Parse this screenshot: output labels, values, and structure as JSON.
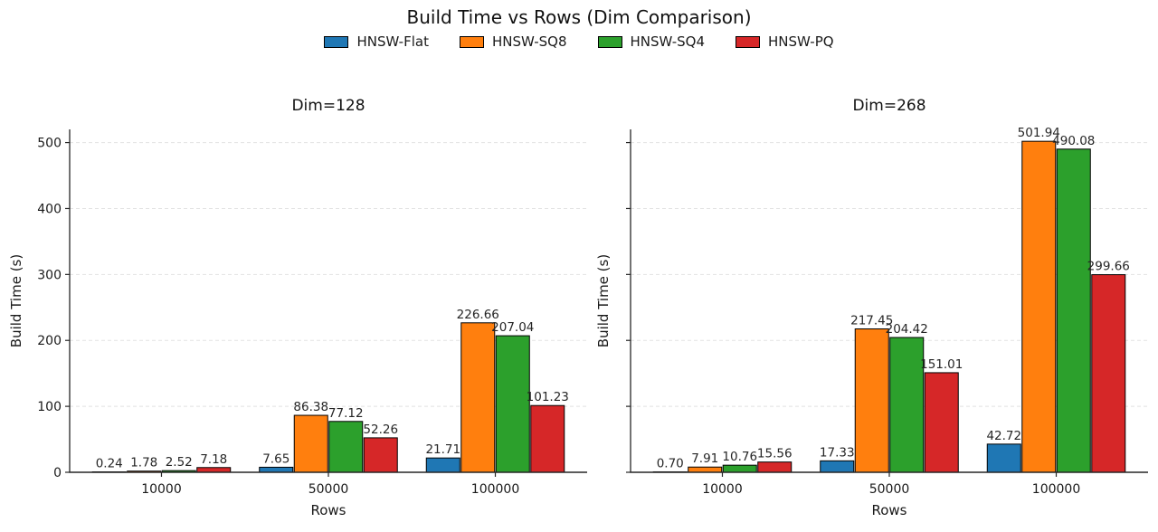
{
  "figure": {
    "title": "Build Time vs Rows (Dim Comparison)"
  },
  "legend": {
    "entries": [
      "HNSW-Flat",
      "HNSW-SQ8",
      "HNSW-SQ4",
      "HNSW-PQ"
    ],
    "colors": [
      "#1f77b4",
      "#ff7f0e",
      "#2ca02c",
      "#d62728"
    ]
  },
  "chart_data": [
    {
      "type": "bar",
      "title": "Dim=128",
      "xlabel": "Rows",
      "ylabel": "Build Time (s)",
      "categories": [
        "10000",
        "50000",
        "100000"
      ],
      "series": [
        {
          "name": "HNSW-Flat",
          "color": "#1f77b4",
          "values": [
            0.24,
            7.65,
            21.71
          ]
        },
        {
          "name": "HNSW-SQ8",
          "color": "#ff7f0e",
          "values": [
            1.78,
            86.38,
            226.66
          ]
        },
        {
          "name": "HNSW-SQ4",
          "color": "#2ca02c",
          "values": [
            2.52,
            77.12,
            207.04
          ]
        },
        {
          "name": "HNSW-PQ",
          "color": "#d62728",
          "values": [
            7.18,
            52.26,
            101.23
          ]
        }
      ],
      "bar_labels": [
        "0.24",
        "1.78",
        "2.52",
        "7.18",
        "7.65",
        "86.38",
        "77.12",
        "52.26",
        "21.71",
        "226.66",
        "207.04",
        "101.23"
      ],
      "ylim": [
        0,
        520
      ],
      "yticks": [
        0,
        100,
        200,
        300,
        400,
        500
      ],
      "show_ytick_labels": true,
      "grid": "dashed-horizontal",
      "legend_position": "top-center-above-axes"
    },
    {
      "type": "bar",
      "title": "Dim=268",
      "xlabel": "Rows",
      "ylabel": "Build Time (s)",
      "categories": [
        "10000",
        "50000",
        "100000"
      ],
      "series": [
        {
          "name": "HNSW-Flat",
          "color": "#1f77b4",
          "values": [
            0.7,
            17.33,
            42.72
          ]
        },
        {
          "name": "HNSW-SQ8",
          "color": "#ff7f0e",
          "values": [
            7.91,
            217.45,
            501.94
          ]
        },
        {
          "name": "HNSW-SQ4",
          "color": "#2ca02c",
          "values": [
            10.76,
            204.42,
            490.08
          ]
        },
        {
          "name": "HNSW-PQ",
          "color": "#d62728",
          "values": [
            15.56,
            151.01,
            299.66
          ]
        }
      ],
      "bar_labels": [
        "0.70",
        "7.91",
        "10.76",
        "15.56",
        "17.33",
        "217.45",
        "204.42",
        "151.01",
        "42.72",
        "501.94",
        "490.08",
        "299.66"
      ],
      "ylim": [
        0,
        520
      ],
      "yticks": [
        0,
        100,
        200,
        300,
        400,
        500
      ],
      "show_ytick_labels": false,
      "grid": "dashed-horizontal",
      "legend_position": "top-center-above-axes"
    }
  ]
}
